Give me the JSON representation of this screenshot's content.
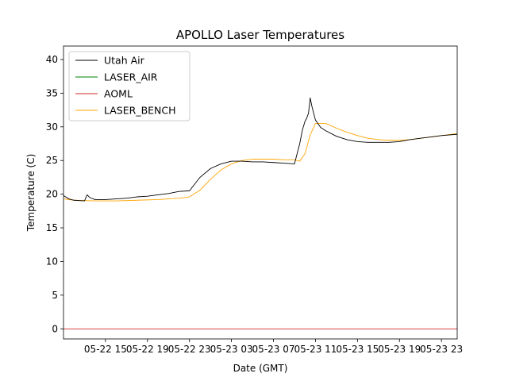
{
  "chart_data": {
    "type": "line",
    "title": "APOLLO Laser Temperatures",
    "xlabel": "Date (GMT)",
    "ylabel": "Temperature (C)",
    "x_axis_type": "datetime",
    "xlim": [
      "2022-05-22 11:00",
      "2022-05-24 00:30"
    ],
    "ylim": [
      -1.5,
      42
    ],
    "yticks": [
      0,
      5,
      10,
      15,
      20,
      25,
      30,
      35,
      40
    ],
    "xticks": [
      {
        "value": "2022-05-22 15:00",
        "label": "05-22 15"
      },
      {
        "value": "2022-05-22 19:00",
        "label": "05-22 19"
      },
      {
        "value": "2022-05-22 23:00",
        "label": "05-22 23"
      },
      {
        "value": "2022-05-23 03:00",
        "label": "05-23 03"
      },
      {
        "value": "2022-05-23 07:00",
        "label": "05-23 07"
      },
      {
        "value": "2022-05-23 11:00",
        "label": "05-23 11"
      },
      {
        "value": "2022-05-23 15:00",
        "label": "05-23 15"
      },
      {
        "value": "2022-05-23 19:00",
        "label": "05-23 19"
      },
      {
        "value": "2022-05-23 23:00",
        "label": "05-23 23"
      }
    ],
    "grid": false,
    "legend_position": "top-left",
    "series": [
      {
        "name": "Utah Air",
        "color": "#000000",
        "x": [
          "2022-05-22 11:00",
          "2022-05-22 11:30",
          "2022-05-22 12:00",
          "2022-05-22 13:00",
          "2022-05-22 13:15",
          "2022-05-22 13:30",
          "2022-05-22 14:00",
          "2022-05-22 15:00",
          "2022-05-22 16:00",
          "2022-05-22 17:00",
          "2022-05-22 18:00",
          "2022-05-22 19:00",
          "2022-05-22 20:00",
          "2022-05-22 21:00",
          "2022-05-22 22:00",
          "2022-05-22 23:00",
          "2022-05-23 00:00",
          "2022-05-23 01:00",
          "2022-05-23 02:00",
          "2022-05-23 03:00",
          "2022-05-23 04:00",
          "2022-05-23 05:00",
          "2022-05-23 06:00",
          "2022-05-23 07:00",
          "2022-05-23 08:00",
          "2022-05-23 09:00",
          "2022-05-23 09:30",
          "2022-05-23 09:45",
          "2022-05-23 10:00",
          "2022-05-23 10:10",
          "2022-05-23 10:20",
          "2022-05-23 10:30",
          "2022-05-23 10:40",
          "2022-05-23 11:00",
          "2022-05-23 11:30",
          "2022-05-23 12:00",
          "2022-05-23 13:00",
          "2022-05-23 14:00",
          "2022-05-23 15:00",
          "2022-05-23 16:00",
          "2022-05-23 17:00",
          "2022-05-23 18:00",
          "2022-05-23 19:00",
          "2022-05-23 20:00",
          "2022-05-23 21:00",
          "2022-05-23 22:00",
          "2022-05-23 23:00",
          "2022-05-24 00:30"
        ],
        "y": [
          19.8,
          19.3,
          19.1,
          19.0,
          19.9,
          19.5,
          19.2,
          19.2,
          19.3,
          19.4,
          19.6,
          19.7,
          19.9,
          20.1,
          20.4,
          20.5,
          22.5,
          23.8,
          24.5,
          24.9,
          24.9,
          24.8,
          24.8,
          24.7,
          24.6,
          24.5,
          27.5,
          29.5,
          30.8,
          31.3,
          32.0,
          34.3,
          33.0,
          31.0,
          29.9,
          29.4,
          28.6,
          28.1,
          27.8,
          27.7,
          27.7,
          27.7,
          27.8,
          28.1,
          28.3,
          28.5,
          28.7,
          28.9
        ]
      },
      {
        "name": "LASER_AIR",
        "color": "#008000",
        "x": [],
        "y": []
      },
      {
        "name": "AOML",
        "color": "#d62728",
        "x": [
          "2022-05-22 11:00",
          "2022-05-24 00:30"
        ],
        "y": [
          0,
          0
        ]
      },
      {
        "name": "LASER_BENCH",
        "color": "#ffa500",
        "x": [
          "2022-05-22 11:00",
          "2022-05-22 12:00",
          "2022-05-22 14:00",
          "2022-05-22 16:00",
          "2022-05-22 18:00",
          "2022-05-22 20:00",
          "2022-05-22 22:00",
          "2022-05-22 23:00",
          "2022-05-23 00:00",
          "2022-05-23 01:00",
          "2022-05-23 02:00",
          "2022-05-23 03:00",
          "2022-05-23 04:00",
          "2022-05-23 05:00",
          "2022-05-23 06:00",
          "2022-05-23 07:00",
          "2022-05-23 08:00",
          "2022-05-23 09:00",
          "2022-05-23 09:30",
          "2022-05-23 10:00",
          "2022-05-23 10:30",
          "2022-05-23 11:00",
          "2022-05-23 12:00",
          "2022-05-23 13:00",
          "2022-05-23 14:00",
          "2022-05-23 15:00",
          "2022-05-23 16:00",
          "2022-05-23 17:00",
          "2022-05-23 18:00",
          "2022-05-23 19:00",
          "2022-05-23 20:00",
          "2022-05-23 21:00",
          "2022-05-23 22:00",
          "2022-05-23 23:00",
          "2022-05-24 00:30"
        ],
        "y": [
          19.3,
          19.1,
          19.0,
          19.0,
          19.1,
          19.2,
          19.4,
          19.6,
          20.6,
          22.2,
          23.6,
          24.5,
          25.0,
          25.2,
          25.2,
          25.2,
          25.1,
          25.1,
          24.9,
          26.0,
          28.8,
          30.5,
          30.5,
          29.8,
          29.2,
          28.7,
          28.3,
          28.1,
          28.0,
          28.0,
          28.1,
          28.3,
          28.5,
          28.7,
          29.0
        ]
      }
    ]
  }
}
